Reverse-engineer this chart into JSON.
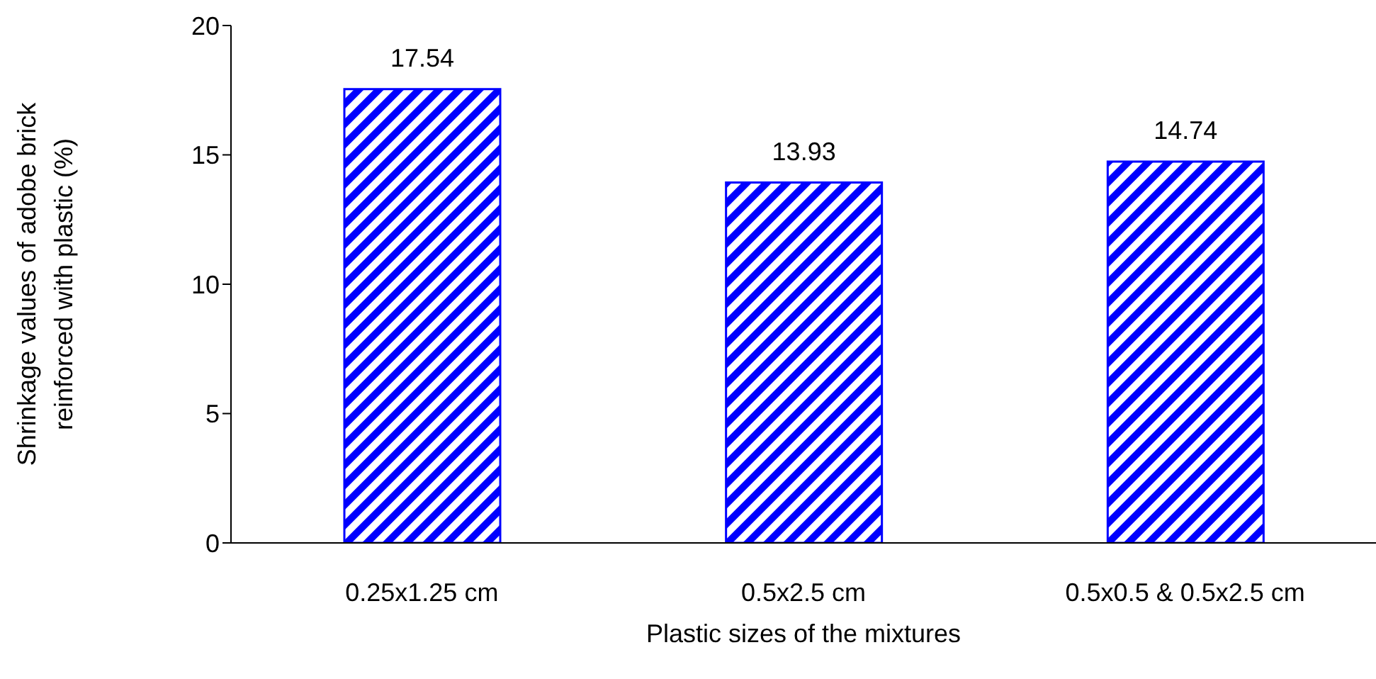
{
  "chart_data": {
    "type": "bar",
    "categories": [
      "0.25x1.25 cm",
      "0.5x2.5 cm",
      "0.5x0.5 & 0.5x2.5 cm"
    ],
    "values": [
      17.54,
      13.93,
      14.74
    ],
    "color": "#0000ff",
    "ylim": [
      0,
      20
    ],
    "yticks": [
      0,
      5,
      10,
      15,
      20
    ],
    "xlabel": "Plastic sizes of the mixtures",
    "ylabel": "Shrinkage values of adobe brick\nreinforced with plastic (%)",
    "data_labels": true,
    "grid": false,
    "legend": false
  }
}
